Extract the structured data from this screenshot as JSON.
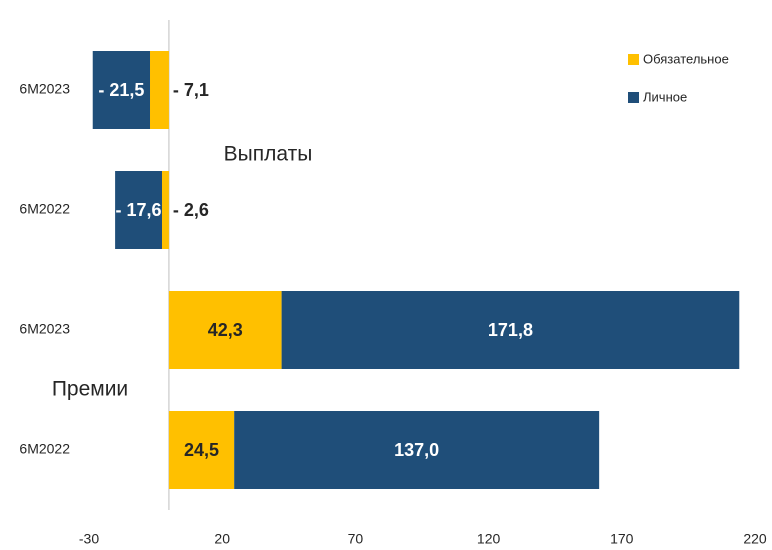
{
  "chart_data": {
    "type": "bar",
    "orientation": "horizontal",
    "stacked": true,
    "categories": [
      "6M2023",
      "6M2022",
      "6M2023",
      "6M2022"
    ],
    "series": [
      {
        "name": "Обязательное",
        "color": "#FFC000",
        "values": [
          -7.1,
          -2.6,
          42.3,
          24.5
        ],
        "value_labels": [
          "- 7,1",
          "- 2,6",
          "42,3",
          "24,5"
        ]
      },
      {
        "name": "Личное",
        "color": "#1F4E79",
        "values": [
          -21.5,
          -17.6,
          171.8,
          137.0
        ],
        "value_labels": [
          "- 21,5",
          "- 17,6",
          "171,8",
          "137,0"
        ]
      }
    ],
    "annotations": [
      "Выплаты",
      "Премии"
    ],
    "xlim": [
      -30,
      220
    ],
    "xticks": [
      -30,
      20,
      70,
      120,
      170,
      220
    ],
    "grid": false,
    "legend": "upper right"
  }
}
